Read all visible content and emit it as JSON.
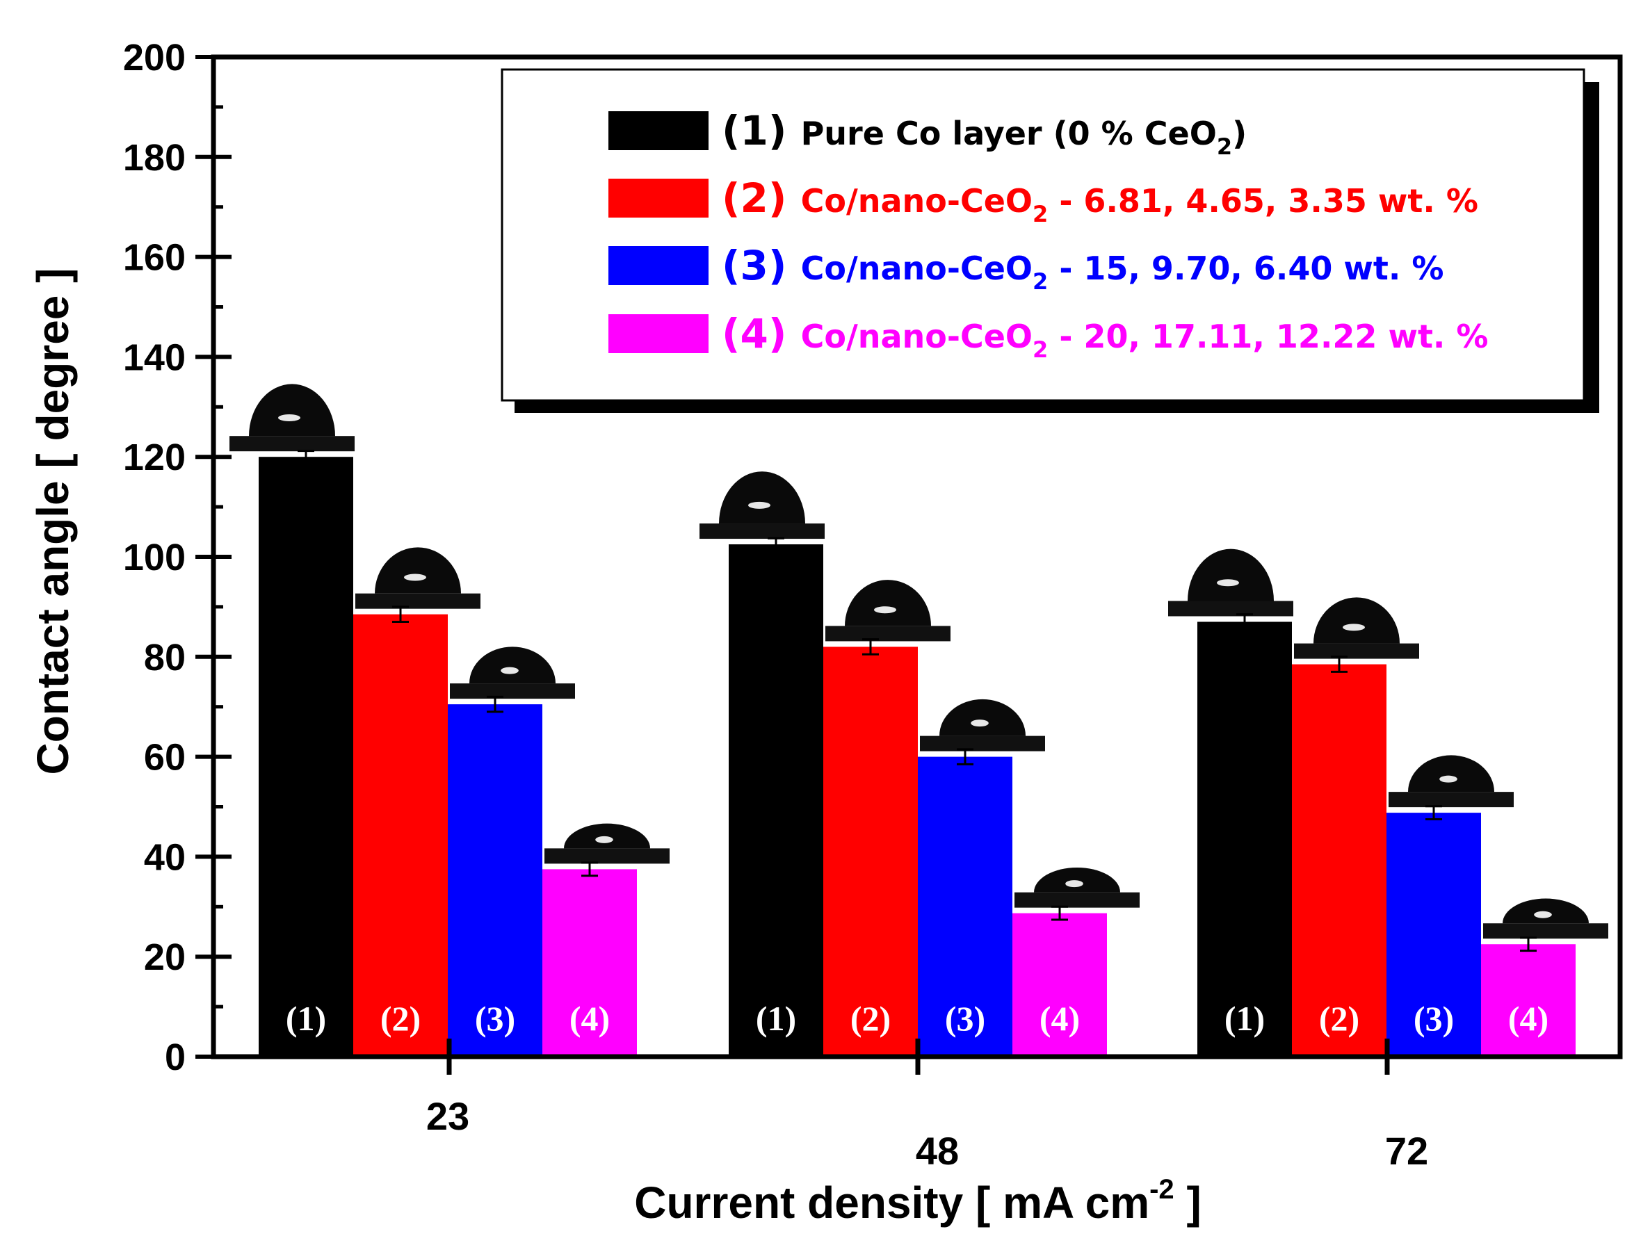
{
  "chart_data": {
    "type": "bar",
    "title": "",
    "xlabel": "Current density  [ mA cm",
    "xlabel_sup": "-2",
    "xlabel_end": " ]",
    "ylabel": "Contact angle [ degree ]",
    "ylim": [
      0,
      200
    ],
    "yticks": [
      "0",
      "20",
      "40",
      "60",
      "80",
      "100",
      "120",
      "140",
      "160",
      "180",
      "200"
    ],
    "categories": [
      "23",
      "48",
      "72"
    ],
    "bar_labels": [
      "(1)",
      "(2)",
      "(3)",
      "(4)"
    ],
    "series": [
      {
        "name": "(1) Pure Co layer (0 % CeO2)",
        "color": "#000000",
        "values": [
          120,
          102.5,
          87
        ],
        "errors": [
          1.2,
          1.2,
          1.5
        ]
      },
      {
        "name": "(2) Co/nano-CeO2 - 6.81, 4.65, 3.35 wt. %",
        "color": "#ff0000",
        "values": [
          88.5,
          82,
          78.5
        ],
        "errors": [
          1.5,
          1.5,
          1.5
        ]
      },
      {
        "name": "(3) Co/nano-CeO2 - 15, 9.70, 6.40 wt. %",
        "color": "#0000ff",
        "values": [
          70.5,
          60,
          48.8
        ],
        "errors": [
          1.5,
          1.5,
          1.3
        ]
      },
      {
        "name": "(4) Co/nano-CeO2 - 20, 17.11, 12.22 wt. %",
        "color": "#ff00ff",
        "values": [
          37.5,
          28.7,
          22.5
        ],
        "errors": [
          1.3,
          1.3,
          1.3
        ]
      }
    ],
    "legend_position": "top-right",
    "legend": [
      {
        "num": "(1)",
        "text": "Pure Co layer (0 % CeO",
        "sub": "2",
        "tail": ")",
        "color": "#000000"
      },
      {
        "num": "(2)",
        "text": "Co/nano-CeO",
        "sub": "2",
        "tail": " - 6.81, 4.65, 3.35 wt. %",
        "color": "#ff0000"
      },
      {
        "num": "(3)",
        "text": "Co/nano-CeO",
        "sub": "2",
        "tail": " - 15, 9.70, 6.40 wt. %",
        "color": "#0000ff"
      },
      {
        "num": "(4)",
        "text": "Co/nano-CeO",
        "sub": "2",
        "tail": " - 20, 17.11, 12.22 wt. %",
        "color": "#ff00ff"
      }
    ]
  }
}
